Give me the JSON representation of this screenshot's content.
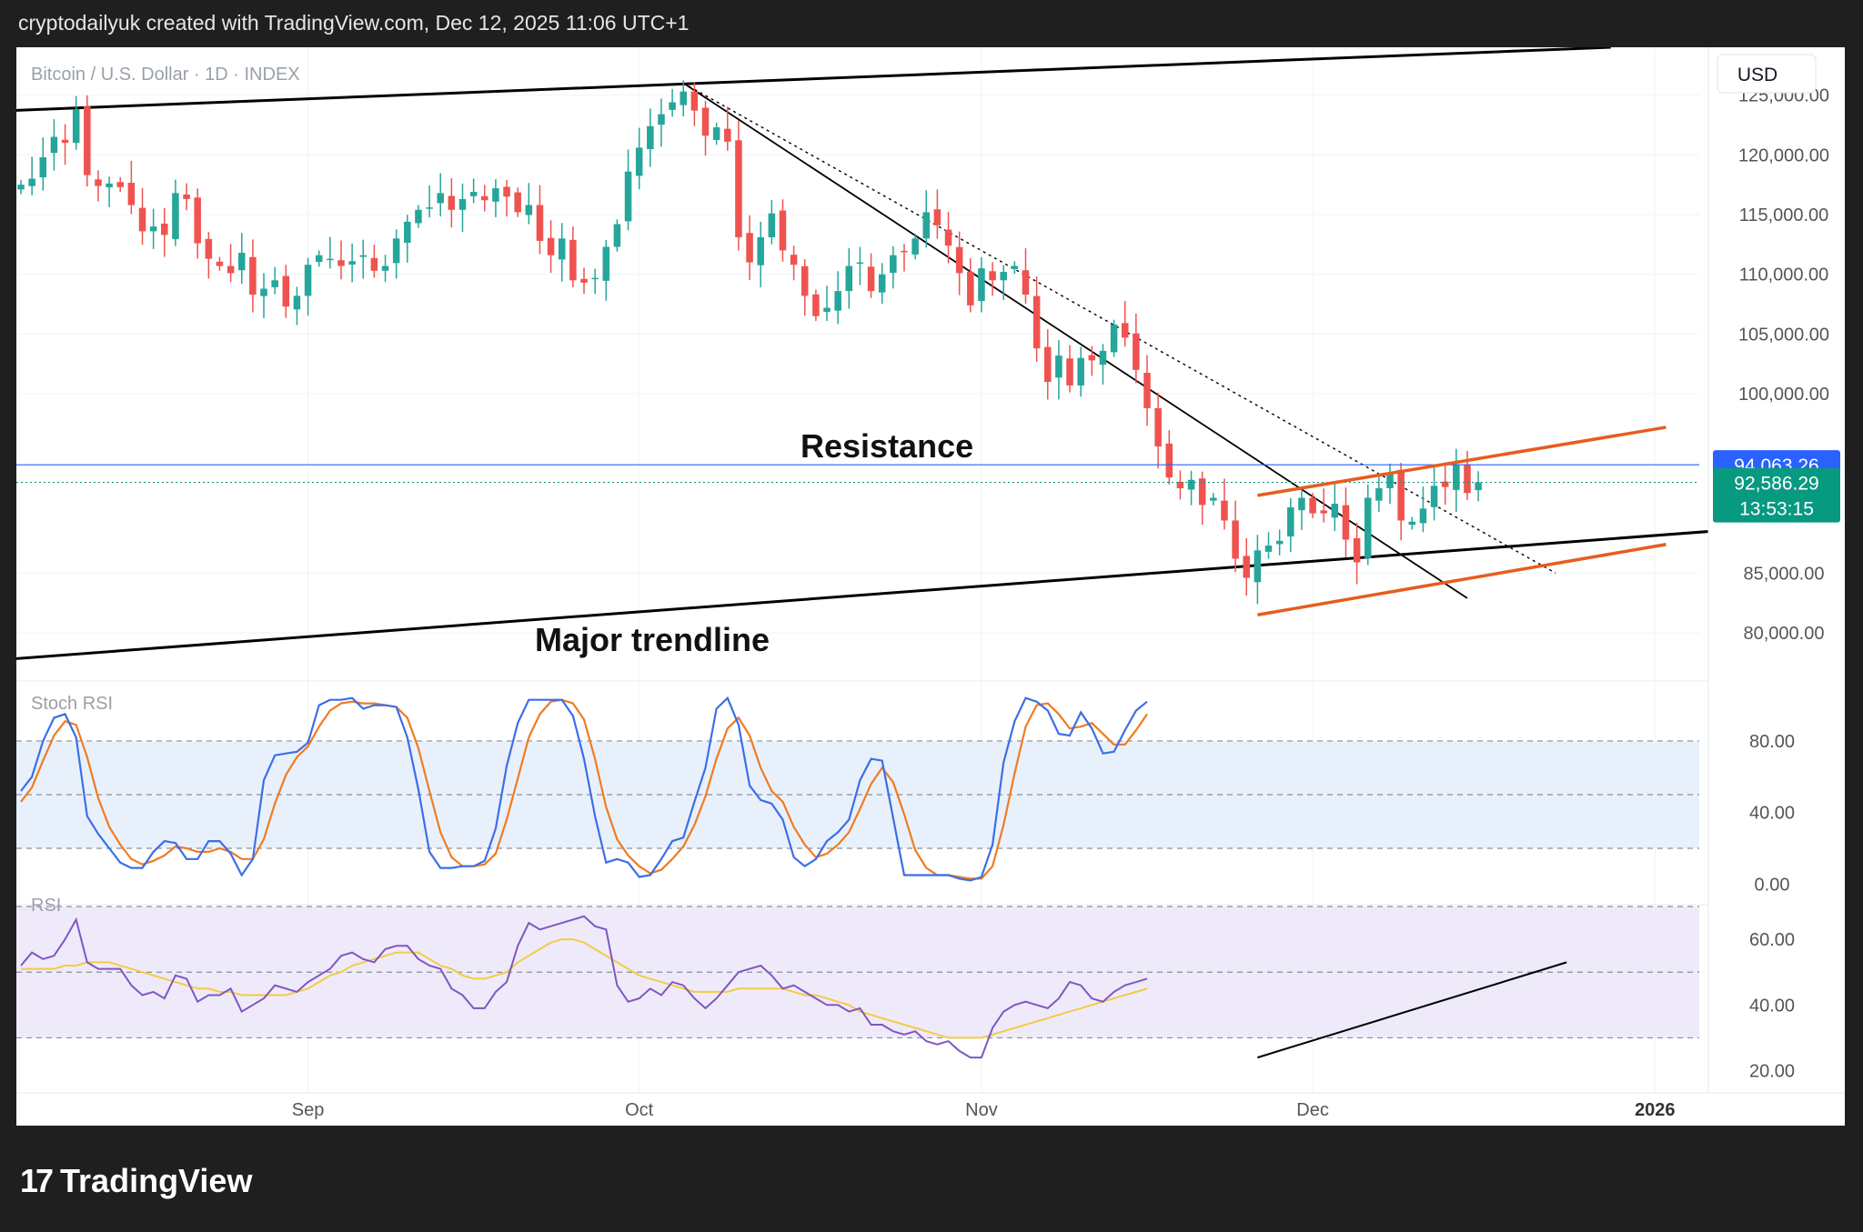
{
  "header": {
    "attribution": "cryptodailyuk created with TradingView.com, Dec 12, 2025 11:06 UTC+1"
  },
  "footer": {
    "logo_mark": "17",
    "logo_text": "TradingView"
  },
  "colors": {
    "up": "#26a69a",
    "down": "#ef5350",
    "stoch_k": "#3d6ee8",
    "stoch_d": "#f07b22",
    "rsi": "#7e57c2",
    "rsi_ma": "#f2cc43",
    "channel": "#e65d1e",
    "trend": "#000000",
    "price_label": "#2962ff",
    "last_label": "#089981"
  },
  "chart_data": [
    {
      "type": "candlestick",
      "title": "Bitcoin / U.S. Dollar · 1D · INDEX",
      "currency": "USD",
      "ylim": [
        76500,
        129000
      ],
      "yticks": [
        "125,000.00",
        "120,000.00",
        "115,000.00",
        "110,000.00",
        "105,000.00",
        "100,000.00",
        "85,000.00",
        "80,000.00"
      ],
      "ytick_values": [
        125000,
        120000,
        115000,
        110000,
        105000,
        100000,
        85000,
        80000
      ],
      "xticks": [
        "Sep",
        "Oct",
        "Nov",
        "Dec",
        "2026"
      ],
      "xtick_dates": [
        "2025-09-01",
        "2025-10-01",
        "2025-11-01",
        "2025-12-01",
        "2026-01-01"
      ],
      "x_start": "2025-08-06",
      "x_end": "2026-01-06",
      "price_line": {
        "label": "94,063.26",
        "value": 94063.26
      },
      "last_price": {
        "label": "92,586.29",
        "countdown": "13:53:15",
        "value": 92586.29
      },
      "closes": [
        117500,
        118000,
        119800,
        121500,
        121000,
        123800,
        118300,
        117400,
        117600,
        117300,
        115800,
        113600,
        114000,
        113300,
        116800,
        116300,
        112600,
        111300,
        110700,
        110100,
        111800,
        108300,
        108800,
        109500,
        107300,
        108200,
        110800,
        111600,
        111300,
        110700,
        111100,
        111600,
        110300,
        110700,
        113000,
        114400,
        115400,
        115600,
        116800,
        115400,
        116300,
        116900,
        116200,
        117200,
        116500,
        115200,
        115800,
        112800,
        111600,
        113000,
        109500,
        109300,
        109700,
        112300,
        114200,
        118600,
        120600,
        122400,
        123400,
        124400,
        125300,
        123700,
        121600,
        122300,
        121100,
        113100,
        111000,
        113100,
        115100,
        112000,
        110800,
        108200,
        106500,
        107200,
        108600,
        110700,
        111000,
        108600,
        110000,
        111600,
        111900,
        113000,
        115200,
        114100,
        112400,
        110100,
        107400,
        110500,
        109500,
        110200,
        110700,
        108300,
        103800,
        101000,
        103200,
        100700,
        103000,
        102800,
        103600,
        105800,
        104700,
        102000,
        98800,
        95600,
        93000,
        92100,
        92800,
        90700,
        91300,
        89400,
        86200,
        84600,
        86900,
        87300,
        87700,
        90500,
        91300,
        90000,
        90000,
        90800,
        87800,
        85900,
        91300,
        92100,
        93400,
        89400,
        89300,
        90400,
        92300,
        92200,
        94100,
        91700,
        92586
      ]
    },
    {
      "type": "line",
      "title": "Stoch RSI",
      "ylim": [
        -10,
        112
      ],
      "yticks": [
        "80.00",
        "40.00",
        "0.00"
      ],
      "ytick_values": [
        80,
        40,
        0
      ],
      "band": [
        20,
        80
      ],
      "series": [
        {
          "key": "k",
          "values": [
            52,
            60,
            80,
            93,
            95,
            82,
            38,
            28,
            20,
            12,
            9,
            9,
            18,
            24,
            23,
            14,
            14,
            24,
            24,
            17,
            5,
            14,
            58,
            72,
            73,
            74,
            79,
            100,
            103,
            103,
            104,
            98,
            100,
            100,
            99,
            82,
            53,
            18,
            9,
            9,
            10,
            10,
            13,
            31,
            66,
            90,
            103,
            103,
            103,
            103,
            94,
            70,
            38,
            12,
            14,
            12,
            4,
            5,
            14,
            24,
            26,
            46,
            65,
            98,
            104,
            89,
            55,
            47,
            45,
            36,
            15,
            10,
            14,
            24,
            29,
            36,
            58,
            70,
            69,
            37,
            5,
            5,
            5,
            5,
            5,
            3,
            2,
            4,
            22,
            68,
            91,
            104,
            102,
            97,
            84,
            83,
            96,
            87,
            73,
            74,
            86,
            97,
            102
          ]
        },
        {
          "key": "d",
          "values": [
            46,
            54,
            69,
            83,
            91,
            89,
            71,
            48,
            32,
            22,
            14,
            11,
            13,
            16,
            21,
            20,
            18,
            18,
            20,
            18,
            14,
            14,
            25,
            45,
            61,
            71,
            77,
            88,
            97,
            101,
            102,
            101,
            101,
            100,
            99,
            93,
            76,
            52,
            29,
            15,
            10,
            10,
            11,
            17,
            36,
            59,
            82,
            95,
            102,
            103,
            101,
            92,
            70,
            43,
            25,
            16,
            10,
            6,
            8,
            14,
            21,
            33,
            49,
            70,
            87,
            93,
            83,
            65,
            52,
            46,
            32,
            22,
            15,
            17,
            22,
            29,
            42,
            56,
            65,
            57,
            39,
            19,
            9,
            5,
            5,
            4,
            3,
            3,
            10,
            33,
            62,
            88,
            100,
            101,
            95,
            87,
            88,
            90,
            84,
            78,
            78,
            86,
            95
          ]
        }
      ]
    },
    {
      "type": "line",
      "title": "RSI",
      "ylim": [
        16,
        70
      ],
      "yticks": [
        "60.00",
        "40.00",
        "20.00"
      ],
      "ytick_values": [
        60,
        40,
        20
      ],
      "band": [
        30,
        70
      ],
      "series": [
        {
          "key": "rsi",
          "values": [
            52,
            56,
            54,
            55,
            60,
            66,
            53,
            51,
            51,
            51,
            46,
            43,
            44,
            42,
            49,
            48,
            41,
            43,
            43,
            45,
            38,
            40,
            42,
            46,
            45,
            44,
            47,
            49,
            51,
            55,
            56,
            54,
            53,
            57,
            58,
            58,
            54,
            52,
            51,
            45,
            43,
            39,
            39,
            44,
            47,
            58,
            65,
            63,
            64,
            65,
            66,
            67,
            64,
            63,
            46,
            41,
            42,
            45,
            43,
            47,
            46,
            42,
            39,
            42,
            46,
            50,
            51,
            52,
            49,
            45,
            46,
            44,
            42,
            40,
            40,
            38,
            39,
            34,
            34,
            32,
            31,
            32,
            29,
            28,
            29,
            26,
            24,
            24,
            33,
            38,
            40,
            41,
            40,
            39,
            42,
            47,
            46,
            42,
            41,
            44,
            46,
            47,
            48
          ]
        },
        {
          "key": "ma",
          "values": [
            51,
            51,
            51,
            51,
            52,
            52,
            53,
            53,
            53,
            52,
            51,
            50,
            49,
            48,
            47,
            46,
            45,
            45,
            44,
            44,
            43,
            43,
            43,
            43,
            43,
            44,
            45,
            47,
            49,
            50,
            52,
            53,
            54,
            55,
            56,
            56,
            56,
            54,
            52,
            51,
            49,
            48,
            48,
            49,
            50,
            53,
            55,
            57,
            59,
            60,
            60,
            59,
            57,
            55,
            53,
            51,
            49,
            48,
            47,
            46,
            45,
            44,
            44,
            44,
            44,
            45,
            45,
            45,
            45,
            45,
            44,
            43,
            43,
            42,
            41,
            40,
            38,
            37,
            36,
            35,
            34,
            33,
            32,
            31,
            30,
            30,
            30,
            30,
            31,
            32,
            33,
            34,
            35,
            36,
            37,
            38,
            39,
            40,
            41,
            42,
            43,
            44,
            45
          ]
        }
      ]
    }
  ],
  "annotations": {
    "resistance": "Resistance",
    "trendline": "Major trendline"
  }
}
